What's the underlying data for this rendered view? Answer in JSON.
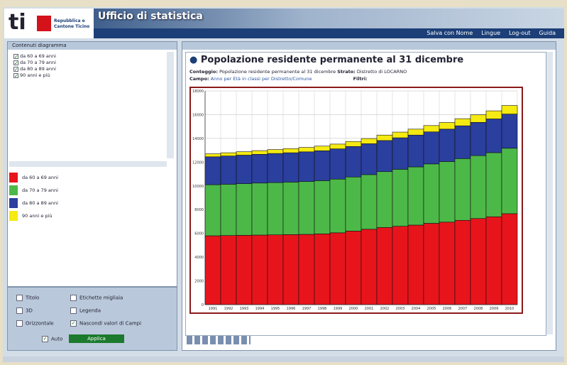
{
  "header": {
    "logo_mark": "ti",
    "logo_text": [
      "Repubblica e",
      "Cantone Ticino"
    ],
    "banner_title": "Ufficio di statistica",
    "nav": [
      "Salva con Nome",
      "Lingue",
      "Log-out",
      "Guida"
    ]
  },
  "left_panel": {
    "title": "Contenuti diagramma",
    "options": [
      {
        "label": "Titolo",
        "checked": false
      },
      {
        "label": "Etichette migliaia",
        "checked": false
      },
      {
        "label": "3D",
        "checked": false
      },
      {
        "label": "Legenda",
        "checked": false
      },
      {
        "label": "Orizzontale",
        "checked": false
      },
      {
        "label": "Nascondi valori di Campi",
        "checked": true
      }
    ],
    "auto": {
      "label": "Auto",
      "checked": true
    },
    "apply": "Applica"
  },
  "main": {
    "title": "Popolazione residente permanente al 31 dicembre",
    "conteggio_label": "Conteggio:",
    "conteggio": "Popolazione residente permanente al 31 dicembre",
    "strato_label": "Strato:",
    "strato": "Distretto di LOCARNO",
    "campo_label": "Campo:",
    "campo": "Anno per Età in classi per Distretto/Comune",
    "filtri_label": "Filtri:"
  },
  "chart_data": {
    "type": "stacked-bar",
    "categories": [
      "1991",
      "1992",
      "1993",
      "1994",
      "1995",
      "1996",
      "1997",
      "1998",
      "1999",
      "2000",
      "2001",
      "2002",
      "2003",
      "2004",
      "2005",
      "2006",
      "2007",
      "2008",
      "2009",
      "2010"
    ],
    "series": [
      {
        "name": "da 60 a 69 anni",
        "color": "#e8141c",
        "values": [
          5800,
          5820,
          5840,
          5860,
          5880,
          5900,
          5920,
          5960,
          6050,
          6200,
          6350,
          6500,
          6600,
          6700,
          6850,
          6950,
          7100,
          7250,
          7400,
          7660
        ]
      },
      {
        "name": "da 70 a 79 anni",
        "color": "#4cb848",
        "values": [
          4300,
          4320,
          4350,
          4380,
          4400,
          4420,
          4450,
          4480,
          4520,
          4550,
          4600,
          4700,
          4800,
          4900,
          5000,
          5100,
          5200,
          5300,
          5400,
          5510
        ]
      },
      {
        "name": "da 80 a 89 anni",
        "color": "#2a3f9e",
        "values": [
          2350,
          2380,
          2400,
          2420,
          2450,
          2470,
          2500,
          2520,
          2550,
          2570,
          2600,
          2620,
          2650,
          2680,
          2700,
          2730,
          2760,
          2800,
          2840,
          2880
        ]
      },
      {
        "name": "90 anni e più",
        "color": "#f5ea12",
        "values": [
          250,
          270,
          290,
          310,
          330,
          350,
          370,
          390,
          400,
          420,
          440,
          460,
          480,
          500,
          530,
          560,
          600,
          640,
          680,
          720
        ]
      }
    ],
    "ylim": [
      0,
      18000
    ],
    "yticks": [
      0,
      2000,
      4000,
      6000,
      8000,
      10000,
      12000,
      14000,
      16000,
      18000
    ],
    "grid": true
  }
}
